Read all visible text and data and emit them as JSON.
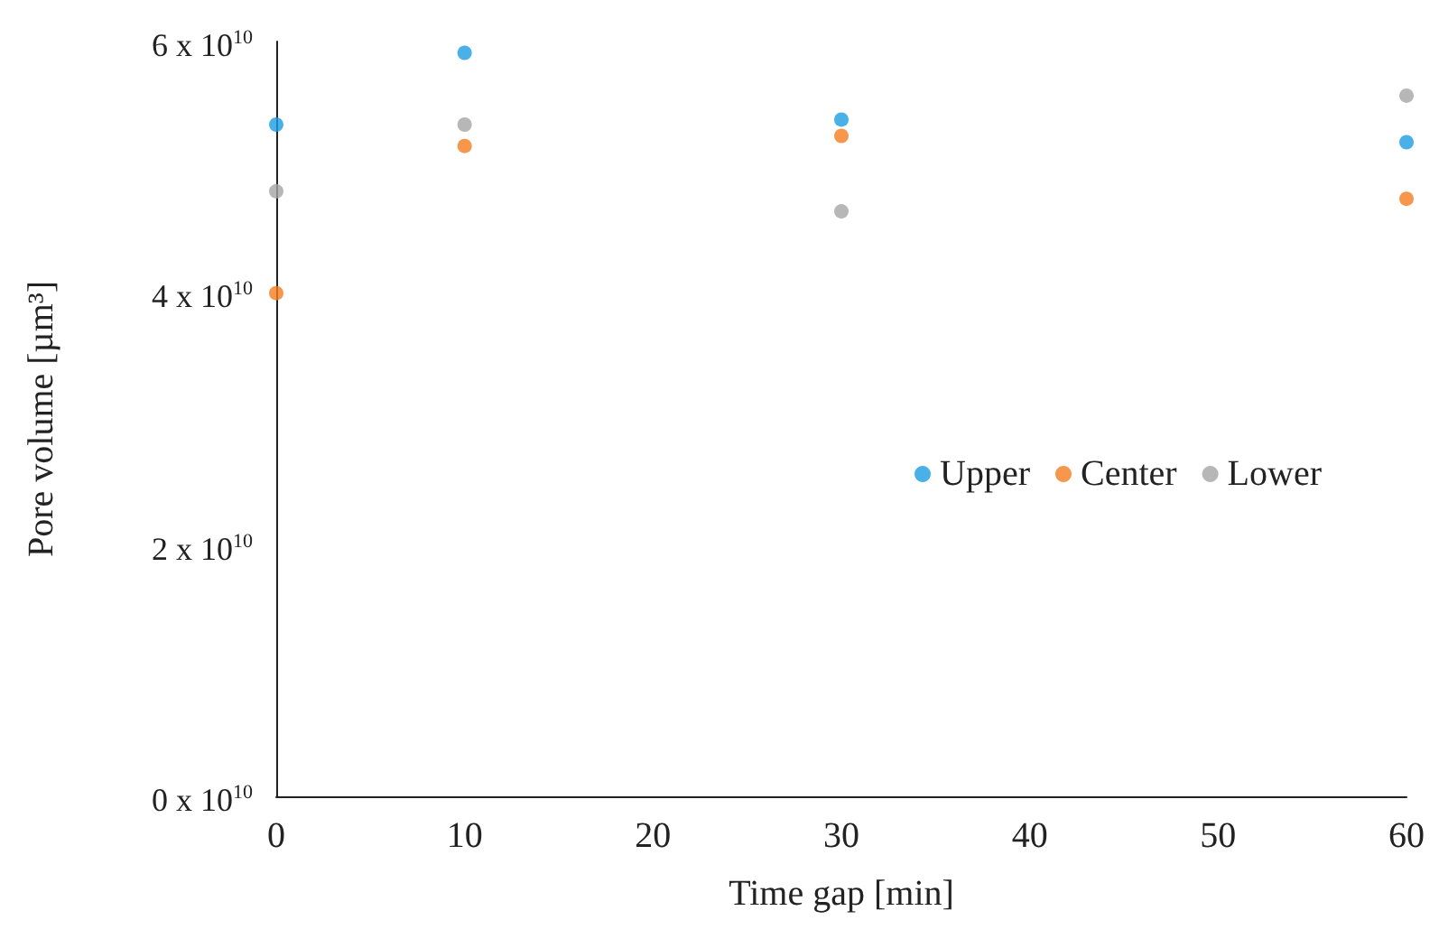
{
  "chart_data": {
    "type": "scatter",
    "xlabel": "Time gap [min]",
    "ylabel": "Pore volume [µm³]",
    "x": [
      0,
      10,
      30,
      60
    ],
    "series": [
      {
        "name": "Upper",
        "color": "#1b9de2",
        "values": [
          53400000000,
          59100000000,
          53800000000,
          52000000000
        ]
      },
      {
        "name": "Center",
        "color": "#f57d1f",
        "values": [
          40000000000,
          51700000000,
          52500000000,
          47500000000
        ]
      },
      {
        "name": "Lower",
        "color": "#a5a5a5",
        "values": [
          48100000000,
          53400000000,
          46500000000,
          55700000000
        ]
      }
    ],
    "xlim": [
      0,
      60
    ],
    "xticks": [
      0,
      10,
      20,
      30,
      40,
      50,
      60
    ],
    "ylim": [
      0,
      60000000000
    ],
    "yticks": [
      {
        "value": 0,
        "label": "0 x 10$^{10}$"
      },
      {
        "value": 20000000000,
        "label": "2 x 10$^{10}$"
      },
      {
        "value": 40000000000,
        "label": "4 x 10$^{10}$"
      },
      {
        "value": 60000000000,
        "label": "6 x 10$^{10}$"
      }
    ],
    "marker": "circle",
    "legend": "right",
    "grid": false
  }
}
